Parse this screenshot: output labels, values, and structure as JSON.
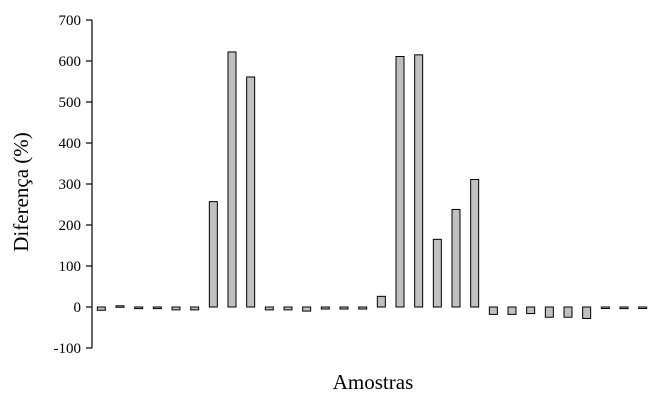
{
  "chart_data": {
    "type": "bar",
    "title": "",
    "xlabel": "Amostras",
    "ylabel": "Diferença (%)",
    "ylim": [
      -100,
      700
    ],
    "yticks": [
      "700",
      "600",
      "500",
      "400",
      "300",
      "200",
      "100",
      "0",
      "-100"
    ],
    "ytick_values": [
      700,
      600,
      500,
      400,
      300,
      200,
      100,
      0,
      -100
    ],
    "grid": false,
    "bar_color": "#c0c0c0",
    "values": [
      -8,
      3,
      -4,
      -4,
      -7,
      -7,
      257,
      622,
      561,
      -7,
      -7,
      -10,
      -5,
      -5,
      -5,
      26,
      611,
      615,
      165,
      238,
      311,
      -18,
      -18,
      -16,
      -25,
      -25,
      -28,
      -3,
      -4,
      -2
    ]
  }
}
